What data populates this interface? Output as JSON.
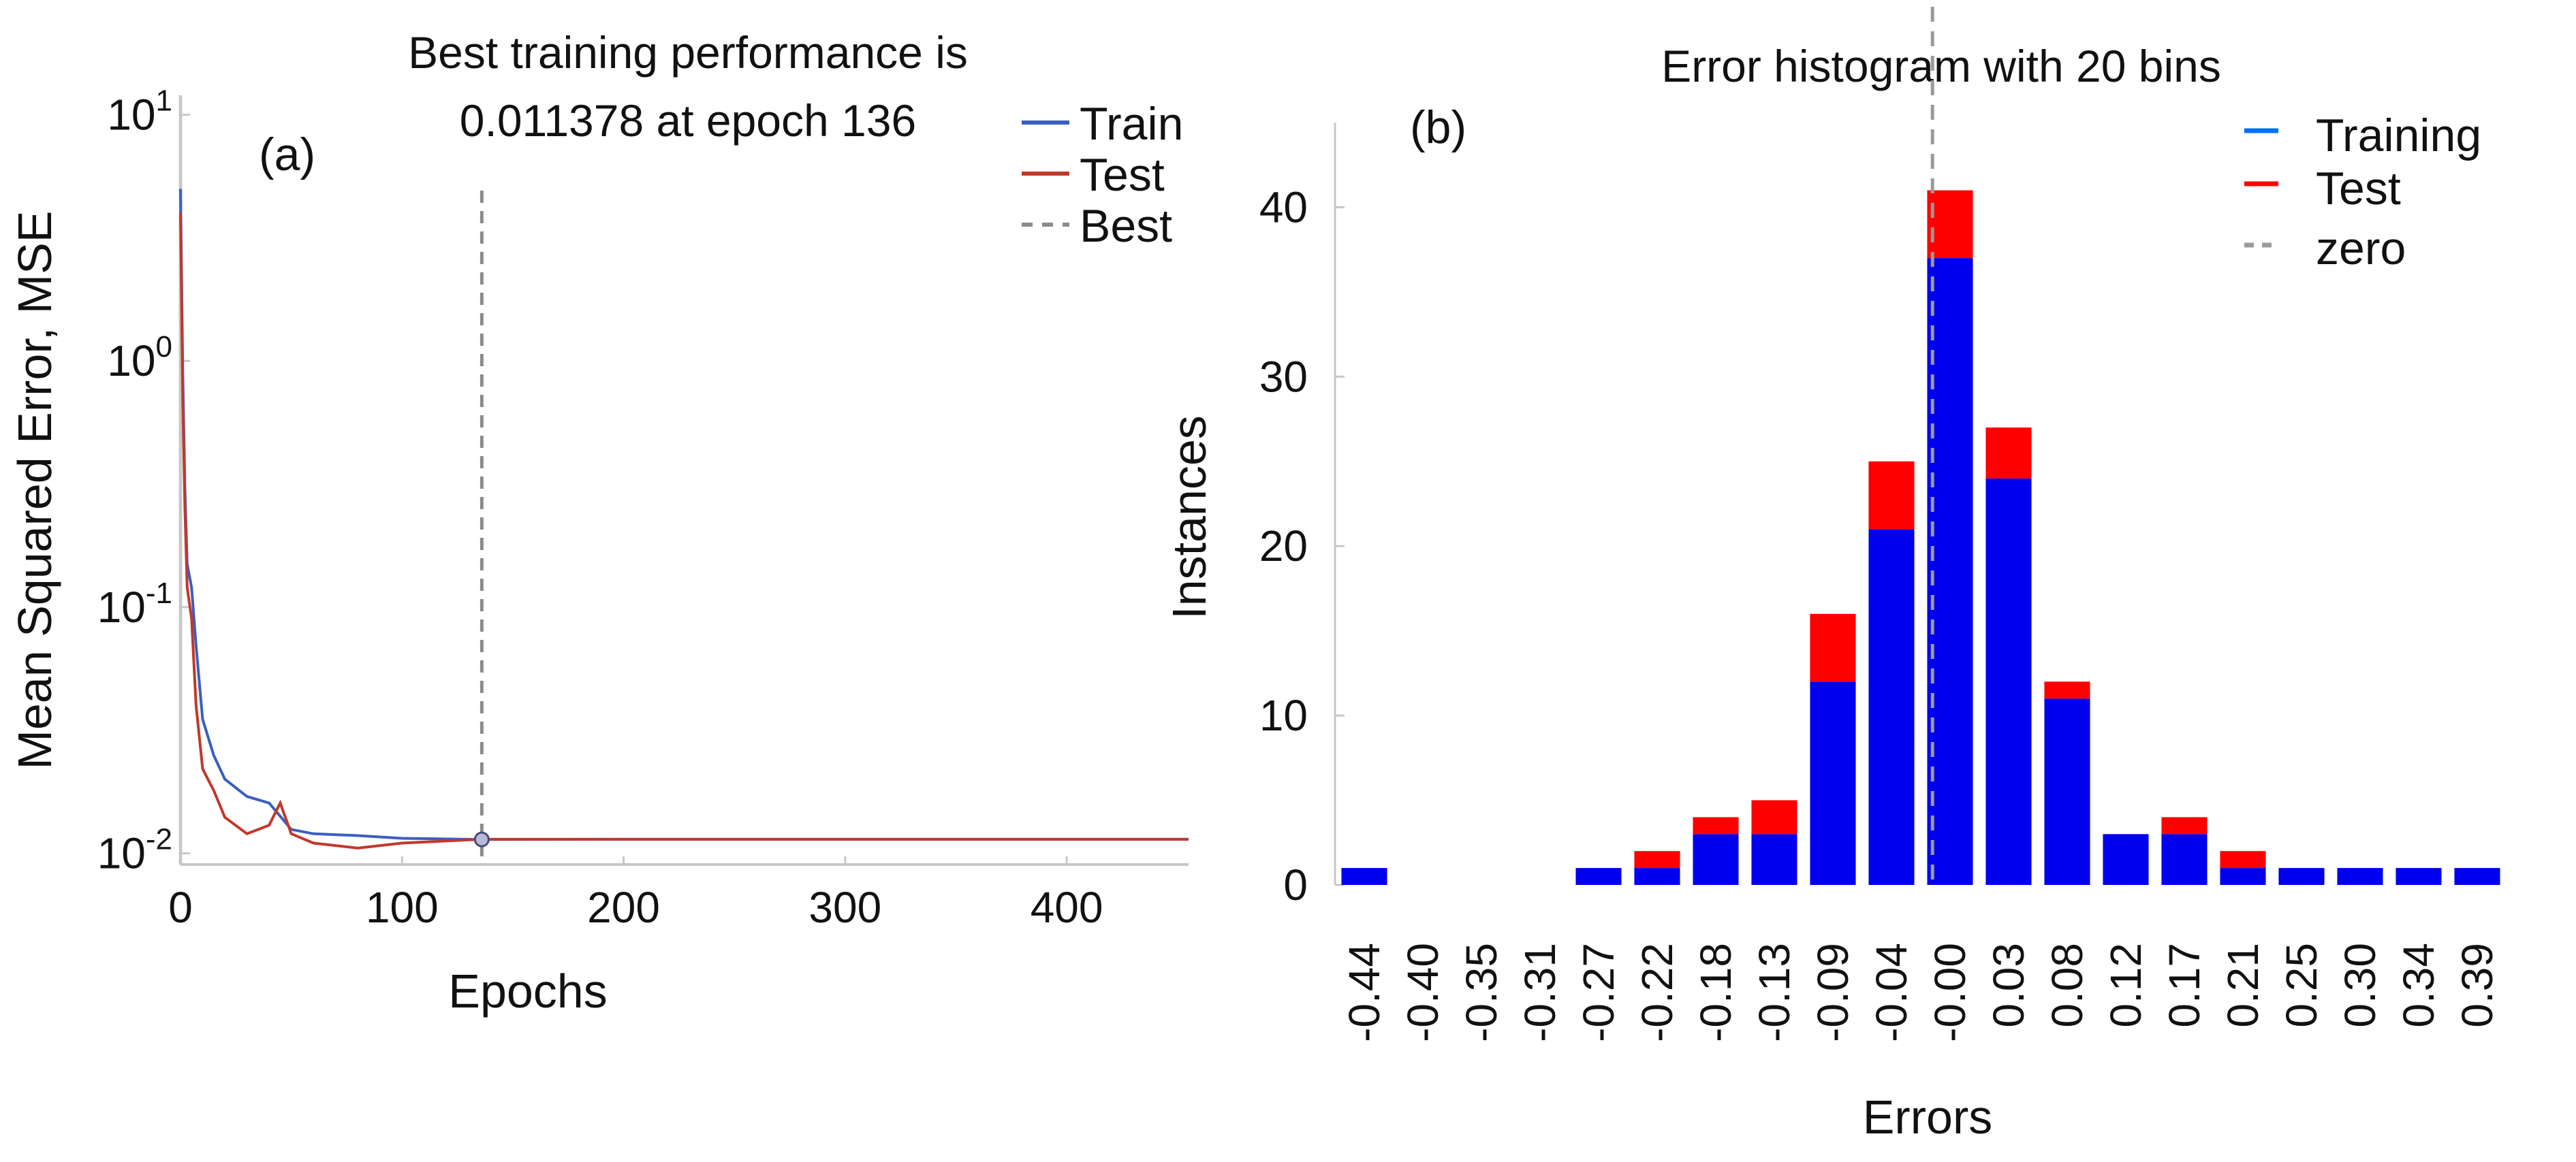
{
  "chart_data": [
    {
      "type": "line",
      "panel_label": "(a)",
      "title_lines": [
        "Best training performance is",
        "0.011378 at epoch 136"
      ],
      "xlabel": "Epochs",
      "ylabel": "Mean Squared Error, MSE",
      "x_ticks": [
        "0",
        "100",
        "200",
        "300",
        "400"
      ],
      "x_tick_values": [
        0,
        100,
        200,
        300,
        400
      ],
      "xlim": [
        0,
        455
      ],
      "y_scale": "log",
      "ylim": [
        0.009,
        12
      ],
      "y_tick_values": [
        10,
        1,
        0.1,
        0.01
      ],
      "y_ticks": [
        {
          "base": "10",
          "exp": "1"
        },
        {
          "base": "10",
          "exp": "0"
        },
        {
          "base": "10",
          "exp": "-1"
        },
        {
          "base": "10",
          "exp": "-2"
        }
      ],
      "best": {
        "epoch": 136,
        "value": 0.011378
      },
      "legend": [
        "Train",
        "Test",
        "Best"
      ],
      "legend_position": "top-right",
      "colors": {
        "train": "#3a5fbf",
        "test": "#c0392b",
        "best": "#8c8c8c"
      },
      "series": [
        {
          "name": "Train",
          "x": [
            0,
            1,
            2,
            3,
            5,
            7,
            10,
            15,
            20,
            30,
            40,
            50,
            60,
            80,
            100,
            136,
            200,
            300,
            400,
            455
          ],
          "y": [
            5.0,
            0.9,
            0.3,
            0.15,
            0.12,
            0.07,
            0.035,
            0.025,
            0.02,
            0.017,
            0.016,
            0.0125,
            0.012,
            0.0118,
            0.0115,
            0.011378,
            0.0114,
            0.0114,
            0.0114,
            0.0114
          ]
        },
        {
          "name": "Test",
          "x": [
            0,
            1,
            2,
            3,
            5,
            7,
            10,
            15,
            20,
            30,
            40,
            45,
            50,
            60,
            80,
            100,
            136,
            200,
            300,
            400,
            455
          ],
          "y": [
            4.0,
            0.7,
            0.25,
            0.12,
            0.09,
            0.04,
            0.022,
            0.018,
            0.014,
            0.012,
            0.013,
            0.016,
            0.012,
            0.011,
            0.0105,
            0.011,
            0.0114,
            0.0114,
            0.0114,
            0.0114,
            0.0114
          ]
        }
      ]
    },
    {
      "type": "bar",
      "panel_label": "(b)",
      "title": "Error histogram with 20 bins",
      "xlabel": "Errors",
      "ylabel": "Instances",
      "stacked": true,
      "categories": [
        "-0.44",
        "-0.40",
        "-0.35",
        "-0.31",
        "-0.27",
        "-0.22",
        "-0.18",
        "-0.13",
        "-0.09",
        "-0.04",
        "-0.00",
        "0.03",
        "0.08",
        "0.12",
        "0.17",
        "0.21",
        "0.25",
        "0.30",
        "0.34",
        "0.39"
      ],
      "ylim": [
        0,
        45
      ],
      "y_ticks": [
        0,
        10,
        20,
        30,
        40
      ],
      "zero_bin_index": 10,
      "legend": [
        "Training",
        "Test",
        "zero"
      ],
      "legend_position": "top-right",
      "colors": {
        "training": "#0000ee",
        "test": "#ff0000",
        "zero": "#9a9a9a"
      },
      "series": [
        {
          "name": "Training",
          "values": [
            1,
            0,
            0,
            0,
            1,
            1,
            3,
            3,
            12,
            21,
            37,
            24,
            11,
            3,
            3,
            1,
            1,
            1,
            1,
            1
          ]
        },
        {
          "name": "Test",
          "values": [
            0,
            0,
            0,
            0,
            0,
            1,
            1,
            2,
            4,
            4,
            4,
            3,
            1,
            0,
            1,
            1,
            0,
            0,
            0,
            0
          ]
        }
      ]
    }
  ]
}
